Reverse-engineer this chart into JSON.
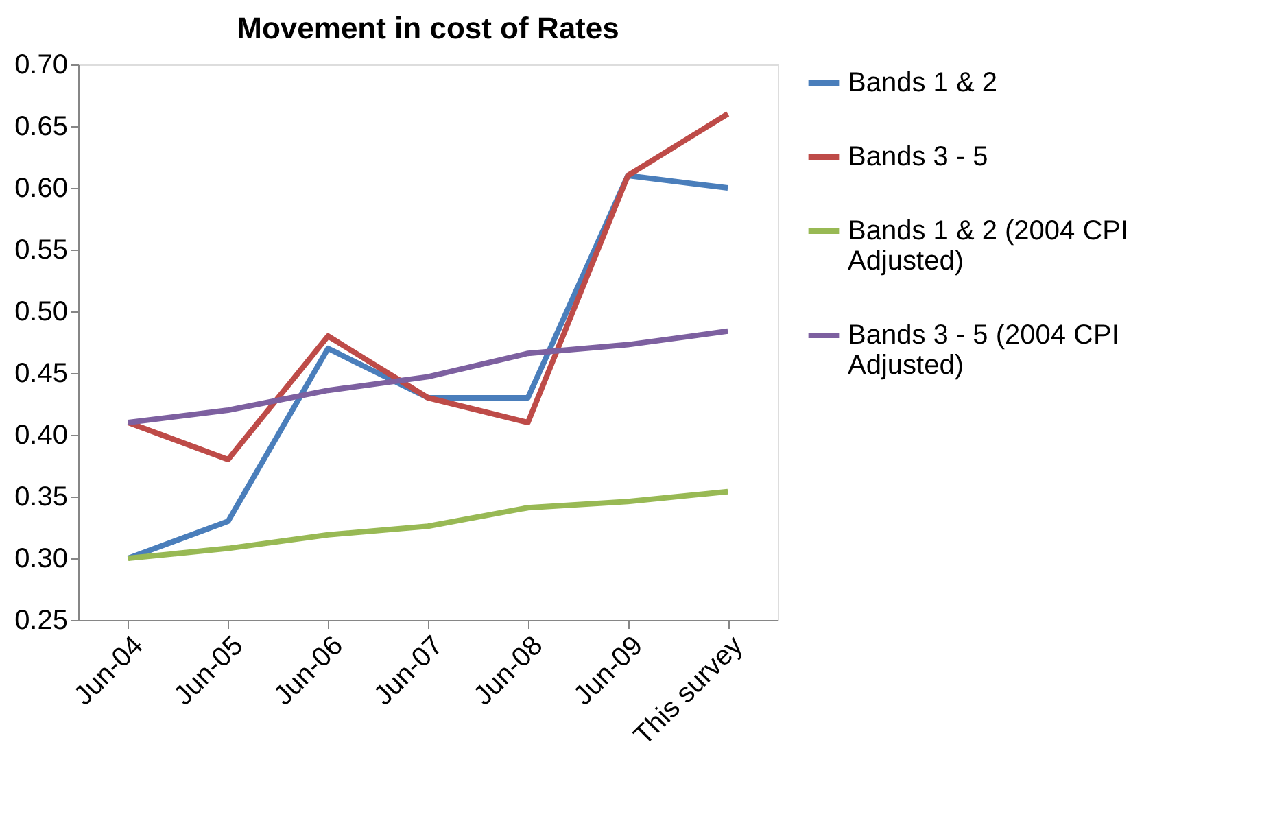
{
  "chart_data": {
    "type": "line",
    "title": "Movement in cost of Rates",
    "categories": [
      "Jun-04",
      "Jun-05",
      "Jun-06",
      "Jun-07",
      "Jun-08",
      "Jun-09",
      "This survey"
    ],
    "series": [
      {
        "name": "Bands 1 & 2",
        "color": "#4a7ebb",
        "values": [
          0.3,
          0.33,
          0.47,
          0.43,
          0.43,
          0.61,
          0.6
        ]
      },
      {
        "name": "Bands 3 - 5",
        "color": "#be4b48",
        "values": [
          0.41,
          0.38,
          0.48,
          0.43,
          0.41,
          0.61,
          0.66
        ]
      },
      {
        "name": "Bands 1 & 2 (2004 CPI Adjusted)",
        "color": "#98b954",
        "values": [
          0.3,
          0.308,
          0.319,
          0.326,
          0.341,
          0.346,
          0.354
        ]
      },
      {
        "name": "Bands 3 - 5 (2004 CPI Adjusted)",
        "color": "#7d60a0",
        "values": [
          0.41,
          0.42,
          0.436,
          0.447,
          0.466,
          0.473,
          0.484
        ]
      }
    ],
    "ylim": [
      0.25,
      0.7
    ],
    "yticks": [
      {
        "value": 0.25,
        "label": "0.25"
      },
      {
        "value": 0.3,
        "label": "0.30"
      },
      {
        "value": 0.35,
        "label": "0.35"
      },
      {
        "value": 0.4,
        "label": "0.40"
      },
      {
        "value": 0.45,
        "label": "0.45"
      },
      {
        "value": 0.5,
        "label": "0.50"
      },
      {
        "value": 0.55,
        "label": "0.55"
      },
      {
        "value": 0.6,
        "label": "0.60"
      },
      {
        "value": 0.65,
        "label": "0.65"
      },
      {
        "value": 0.7,
        "label": "0.70"
      }
    ],
    "grid": false,
    "legend": "right",
    "marker": "none",
    "line_style": "solid"
  }
}
